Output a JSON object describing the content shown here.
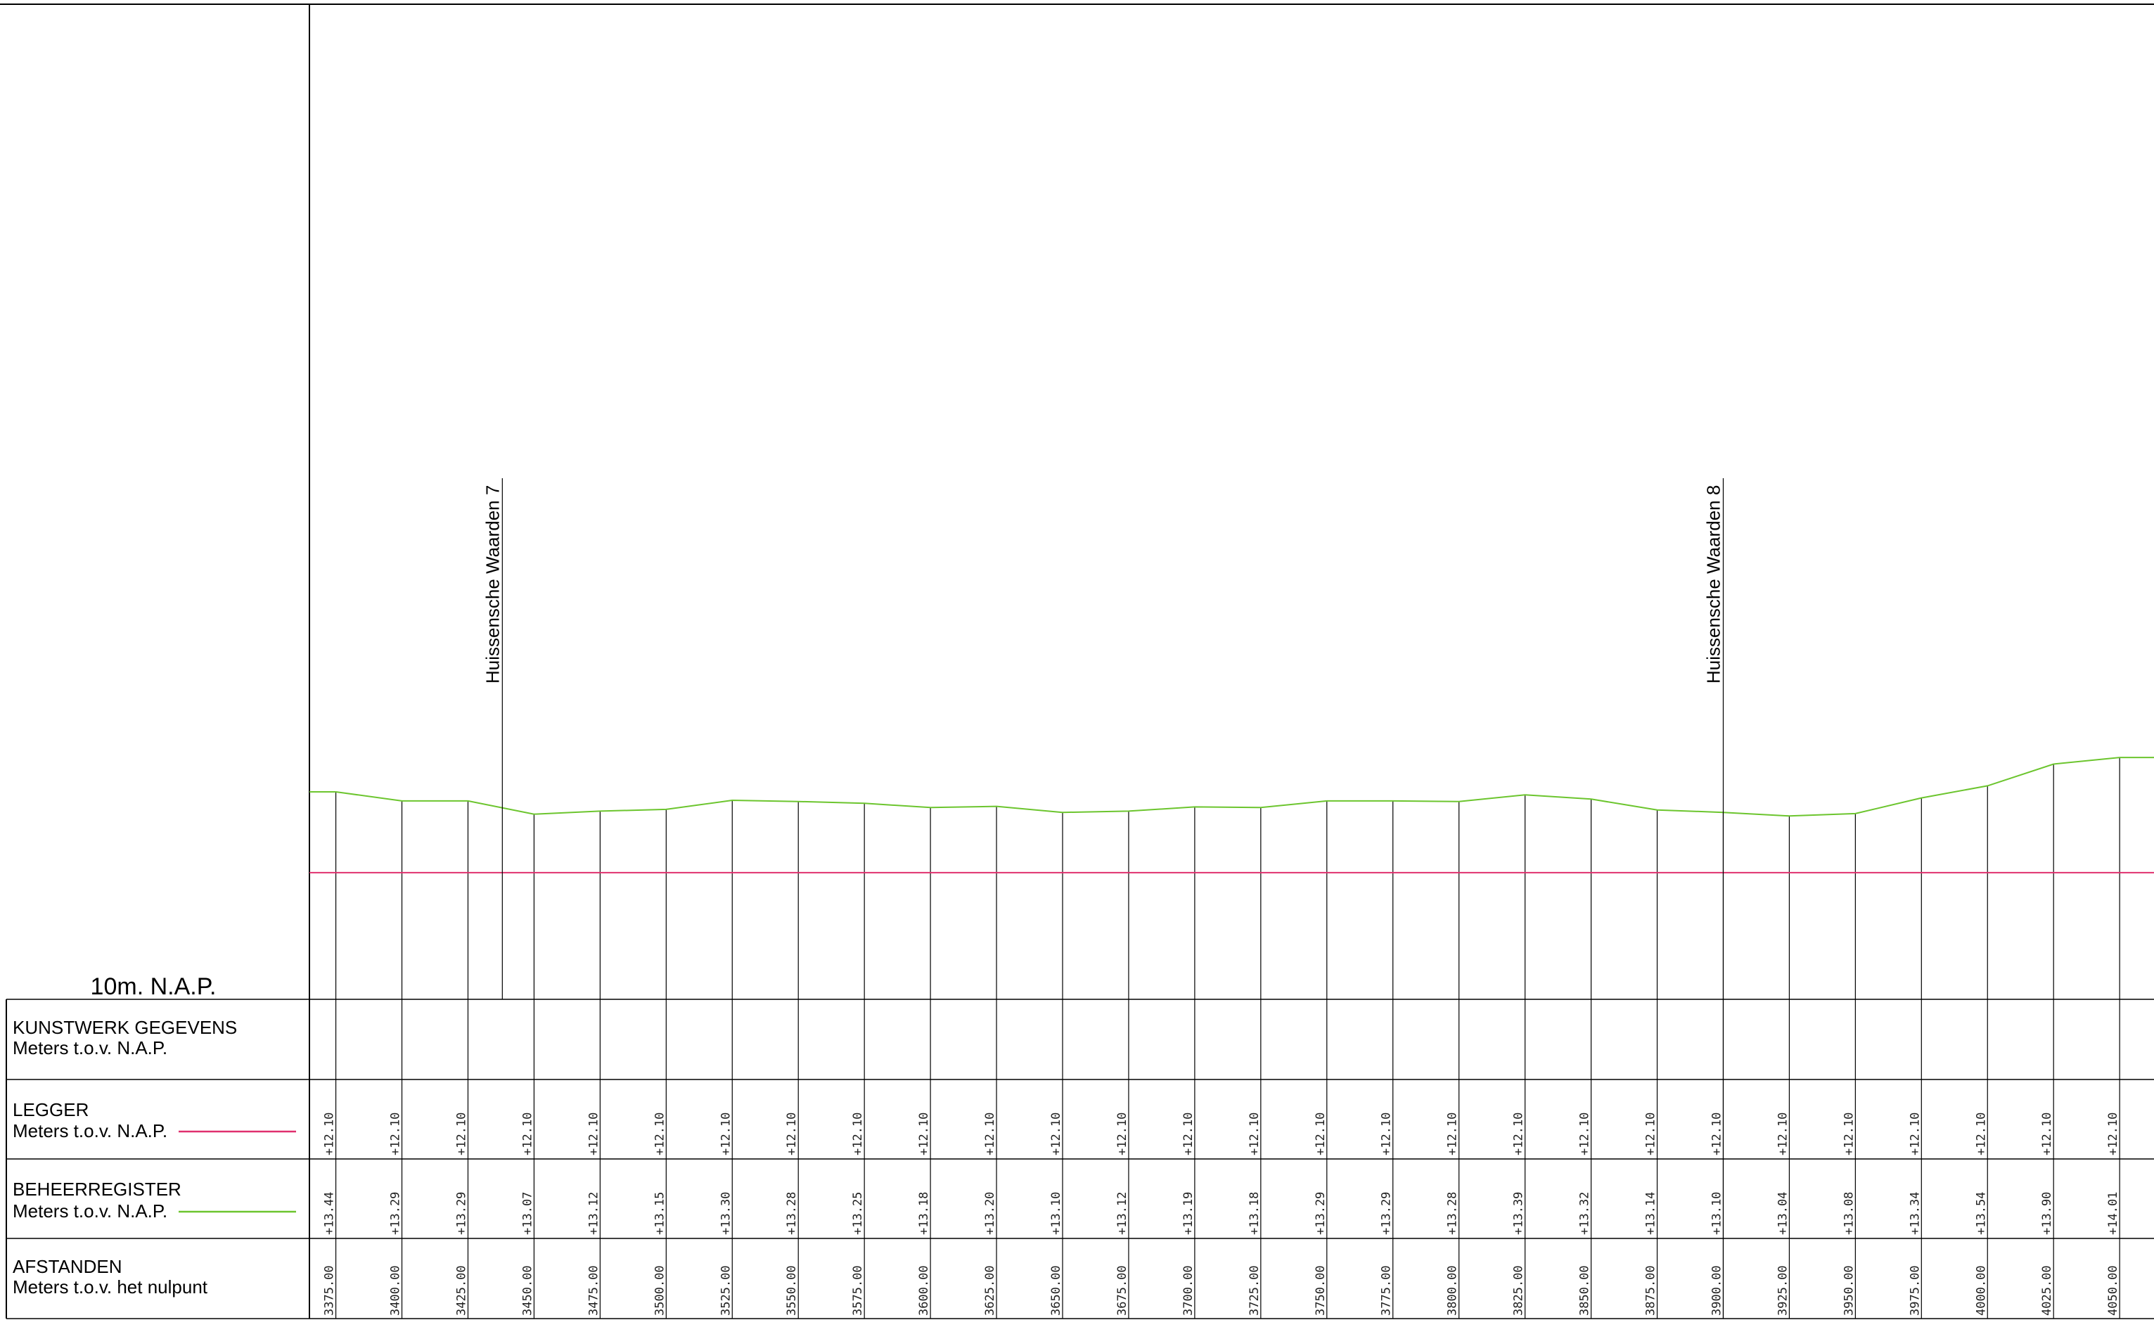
{
  "colors": {
    "legger": "#e0306e",
    "beheerregister": "#6cc52e",
    "lines": "#000000"
  },
  "reference_label": "10m. N.A.P.",
  "rows": {
    "kunstwerk": {
      "title": "KUNSTWERK GEGEVENS",
      "subtitle": "Meters t.o.v. N.A.P."
    },
    "legger": {
      "title": "LEGGER",
      "subtitle": "Meters t.o.v. N.A.P."
    },
    "beheerregister": {
      "title": "BEHEERREGISTER",
      "subtitle": "Meters t.o.v. N.A.P."
    },
    "afstanden": {
      "title": "AFSTANDEN",
      "subtitle": "Meters t.o.v. het nulpunt"
    }
  },
  "chart_data": {
    "type": "line",
    "xlabel": "",
    "ylabel": "",
    "x_range": [
      3365,
      4063
    ],
    "ylim": [
      10,
      26.5
    ],
    "reference_level": 10,
    "x": [
      3375,
      3400,
      3425,
      3450,
      3475,
      3500,
      3525,
      3550,
      3575,
      3600,
      3625,
      3650,
      3675,
      3700,
      3725,
      3750,
      3775,
      3800,
      3825,
      3850,
      3875,
      3900,
      3925,
      3950,
      3975,
      4000,
      4025,
      4050
    ],
    "structures": [
      {
        "label": "Huissensche Waarden 7",
        "x": 3438
      },
      {
        "label": "Huissensche Waarden 8",
        "x": 3900
      }
    ],
    "series": [
      {
        "name": "LEGGER",
        "values": [
          "+12.10",
          "+12.10",
          "+12.10",
          "+12.10",
          "+12.10",
          "+12.10",
          "+12.10",
          "+12.10",
          "+12.10",
          "+12.10",
          "+12.10",
          "+12.10",
          "+12.10",
          "+12.10",
          "+12.10",
          "+12.10",
          "+12.10",
          "+12.10",
          "+12.10",
          "+12.10",
          "+12.10",
          "+12.10",
          "+12.10",
          "+12.10",
          "+12.10",
          "+12.10",
          "+12.10",
          "+12.10"
        ]
      },
      {
        "name": "BEHEERREGISTER",
        "values": [
          "+13.44",
          "+13.29",
          "+13.29",
          "+13.07",
          "+13.12",
          "+13.15",
          "+13.30",
          "+13.28",
          "+13.25",
          "+13.18",
          "+13.20",
          "+13.10",
          "+13.12",
          "+13.19",
          "+13.18",
          "+13.29",
          "+13.29",
          "+13.28",
          "+13.39",
          "+13.32",
          "+13.14",
          "+13.10",
          "+13.04",
          "+13.08",
          "+13.34",
          "+13.54",
          "+13.90",
          "+14.01"
        ]
      }
    ],
    "afstanden": [
      "3375.00",
      "3400.00",
      "3425.00",
      "3450.00",
      "3475.00",
      "3500.00",
      "3525.00",
      "3550.00",
      "3575.00",
      "3600.00",
      "3625.00",
      "3650.00",
      "3675.00",
      "3700.00",
      "3725.00",
      "3750.00",
      "3775.00",
      "3800.00",
      "3825.00",
      "3850.00",
      "3875.00",
      "3900.00",
      "3925.00",
      "3950.00",
      "3975.00",
      "4000.00",
      "4025.00",
      "4050.00"
    ]
  }
}
